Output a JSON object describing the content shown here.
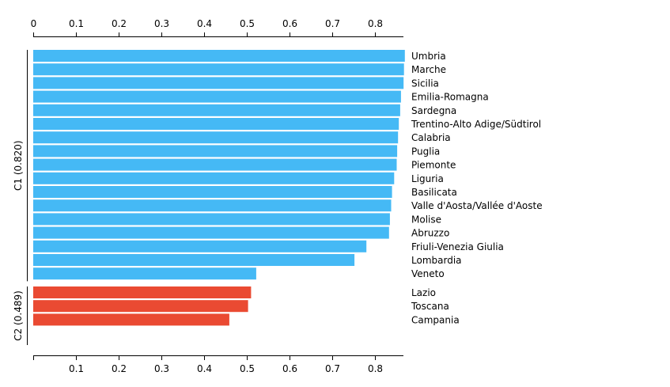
{
  "chart_data": {
    "type": "bar",
    "orientation": "horizontal",
    "xlim": [
      0,
      0.87
    ],
    "x_ticks": [
      "0",
      "0.1",
      "0.2",
      "0.3",
      "0.4",
      "0.5",
      "0.6",
      "0.7",
      "0.8"
    ],
    "x_ticks_bottom": [
      "0.1",
      "0.2",
      "0.3",
      "0.4",
      "0.5",
      "0.6",
      "0.7",
      "0.8"
    ],
    "grid": false,
    "groups": [
      {
        "label": "C1 (0.820)",
        "color": "#45b9f5",
        "categories": [
          "Umbria",
          "Marche",
          "Sicilia",
          "Emilia-Romagna",
          "Sardegna",
          "Trentino-Alto Adige/Südtirol",
          "Calabria",
          "Puglia",
          "Piemonte",
          "Liguria",
          "Basilicata",
          "Valle d'Aosta/Vallée d'Aoste",
          "Molise",
          "Abruzzo",
          "Friuli-Venezia Giulia",
          "Lombardia",
          "Veneto"
        ],
        "values": [
          0.87,
          0.868,
          0.867,
          0.861,
          0.859,
          0.856,
          0.854,
          0.852,
          0.851,
          0.845,
          0.84,
          0.838,
          0.835,
          0.833,
          0.78,
          0.752,
          0.522
        ]
      },
      {
        "label": "C2 (0.489)",
        "color": "#ea4a32",
        "categories": [
          "Lazio",
          "Toscana",
          "Campania"
        ],
        "values": [
          0.51,
          0.503,
          0.459
        ]
      }
    ]
  }
}
